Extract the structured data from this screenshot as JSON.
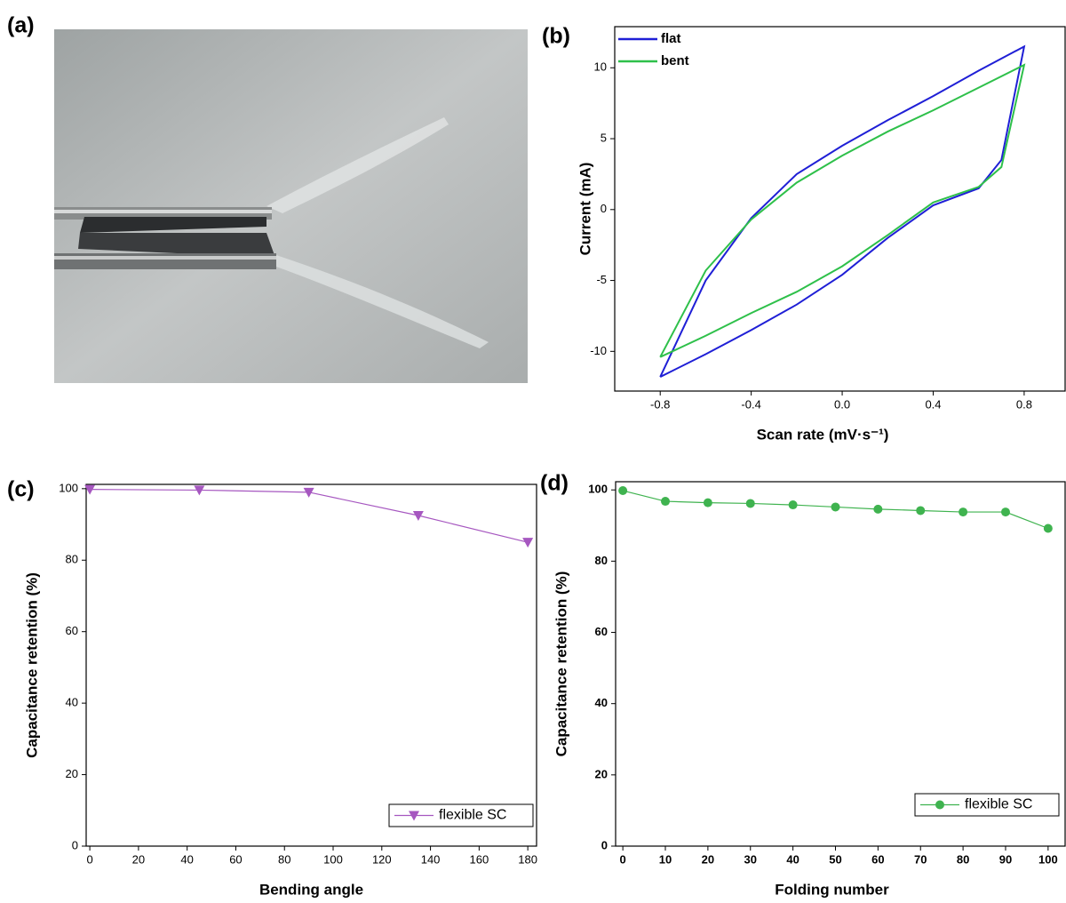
{
  "panel_labels": [
    "(a)",
    "(b)",
    "(c)",
    "(d)"
  ],
  "chart_data": [
    {
      "type": "line",
      "x": [
        -0.8,
        -0.6,
        -0.4,
        -0.2,
        0,
        0.2,
        0.4,
        0.6,
        0.8,
        0.7,
        0.6,
        0.4,
        0.2,
        0,
        -0.2,
        -0.4,
        -0.6,
        -0.8
      ],
      "series": [
        {
          "name": "flat",
          "color": "#1f1fd6",
          "values": [
            -11.8,
            -5,
            -0.6,
            2.5,
            4.5,
            6.3,
            8.0,
            9.8,
            11.5,
            3.5,
            1.5,
            0.3,
            -2.0,
            -4.6,
            -6.7,
            -8.5,
            -10.2,
            -11.8
          ]
        },
        {
          "name": "bent",
          "color": "#2ec04a",
          "values": [
            -10.4,
            -4.3,
            -0.7,
            1.9,
            3.8,
            5.5,
            7.0,
            8.6,
            10.2,
            3.0,
            1.6,
            0.5,
            -1.8,
            -4.0,
            -5.8,
            -7.3,
            -8.9,
            -10.4
          ]
        }
      ],
      "xlabel": "Scan rate (mV·s⁻¹)",
      "ylabel": "Current (mA)",
      "xlim": [
        -1.0,
        0.98
      ],
      "ylim": [
        -12.8,
        12.9
      ],
      "xticks": [
        -0.8,
        -0.4,
        {
          "value": 0,
          "label": "0.0"
        },
        0.4,
        0.8
      ],
      "yticks": [
        -10,
        -5,
        0,
        5,
        10
      ],
      "legend": "upper left",
      "marker": null
    },
    {
      "type": "line",
      "x": [
        0,
        45,
        90,
        135,
        180
      ],
      "series": [
        {
          "name": "flexible SC",
          "color": "#a657c0",
          "values": [
            99.8,
            99.6,
            99.0,
            92.5,
            85.0
          ]
        }
      ],
      "xlabel": "Bending angle",
      "ylabel": "Capacitance retention (%)",
      "xlim": [
        -1.5,
        183.6
      ],
      "ylim": [
        0,
        101.2
      ],
      "xticks": [
        0,
        20,
        40,
        60,
        80,
        100,
        120,
        140,
        160,
        180
      ],
      "yticks": [
        0,
        20,
        40,
        60,
        80,
        100
      ],
      "legend": "lower right",
      "marker": "triangle-down"
    },
    {
      "type": "line",
      "x": [
        0,
        10,
        20,
        30,
        40,
        50,
        60,
        70,
        80,
        90,
        100
      ],
      "series": [
        {
          "name": "flexible SC",
          "color": "#3fb34f",
          "values": [
            99.8,
            96.8,
            96.4,
            96.2,
            95.8,
            95.2,
            94.6,
            94.2,
            93.8,
            93.8,
            89.2
          ]
        }
      ],
      "xlabel": "Folding number",
      "ylabel": "Capacitance retention (%)",
      "xlim": [
        -1.7,
        104
      ],
      "ylim": [
        0,
        102.3
      ],
      "xticks": [
        0,
        10,
        20,
        30,
        40,
        50,
        60,
        70,
        80,
        90,
        100
      ],
      "yticks": [
        0,
        20,
        40,
        60,
        80,
        100
      ],
      "legend": "lower right",
      "marker": "circle"
    }
  ]
}
